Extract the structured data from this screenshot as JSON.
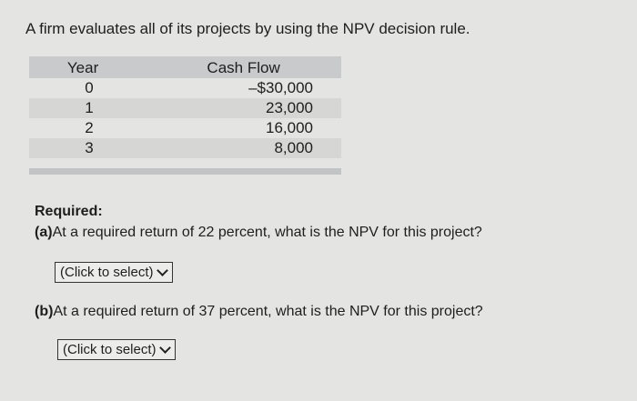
{
  "question": "A firm evaluates all of its projects by using the NPV decision rule.",
  "table": {
    "headers": [
      "Year",
      "Cash Flow"
    ],
    "rows": [
      [
        "0",
        "–$30,000"
      ],
      [
        "1",
        "23,000"
      ],
      [
        "2",
        "16,000"
      ],
      [
        "3",
        "8,000"
      ]
    ]
  },
  "required_label": "Required:",
  "part_a": {
    "label": "(a)",
    "text": "At a required return of 22 percent, what is the NPV for this project?",
    "select": "(Click to select)"
  },
  "part_b": {
    "label": "(b)",
    "text": "At a required return of 37 percent, what is the NPV for this project?",
    "select": "(Click to select)"
  },
  "icons": {
    "dropdown": "chevron-down-icon"
  }
}
